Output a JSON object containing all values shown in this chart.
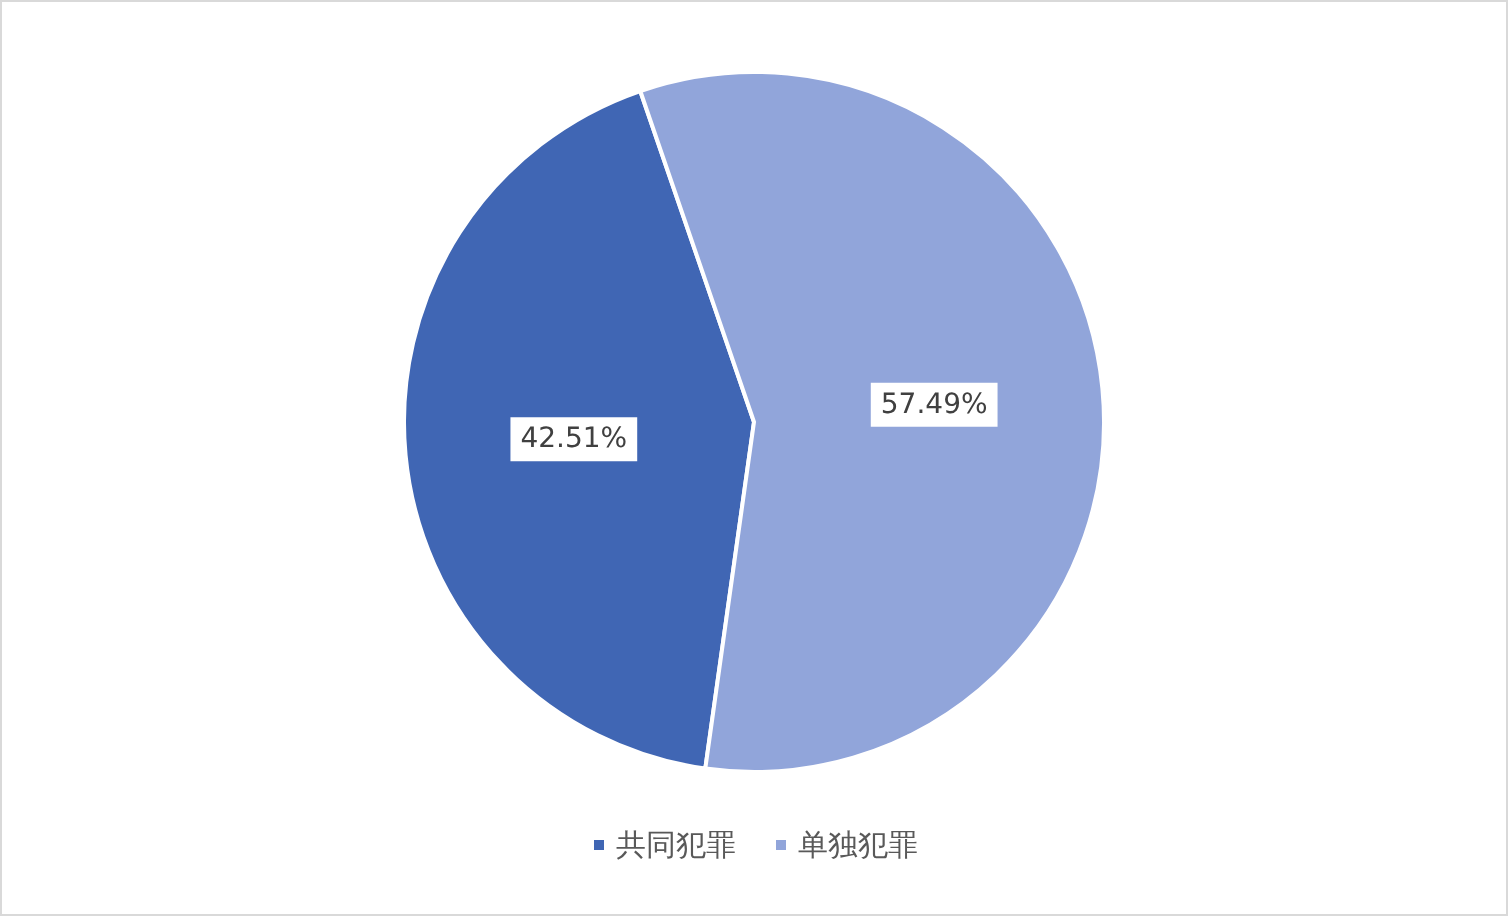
{
  "chart_data": {
    "type": "pie",
    "categories": [
      "共同犯罪",
      "单独犯罪"
    ],
    "values": [
      42.51,
      57.49
    ],
    "colors": [
      "#4066b4",
      "#91a5da"
    ],
    "value_labels": [
      "42.51%",
      "57.49%"
    ],
    "legend": "bottom"
  }
}
